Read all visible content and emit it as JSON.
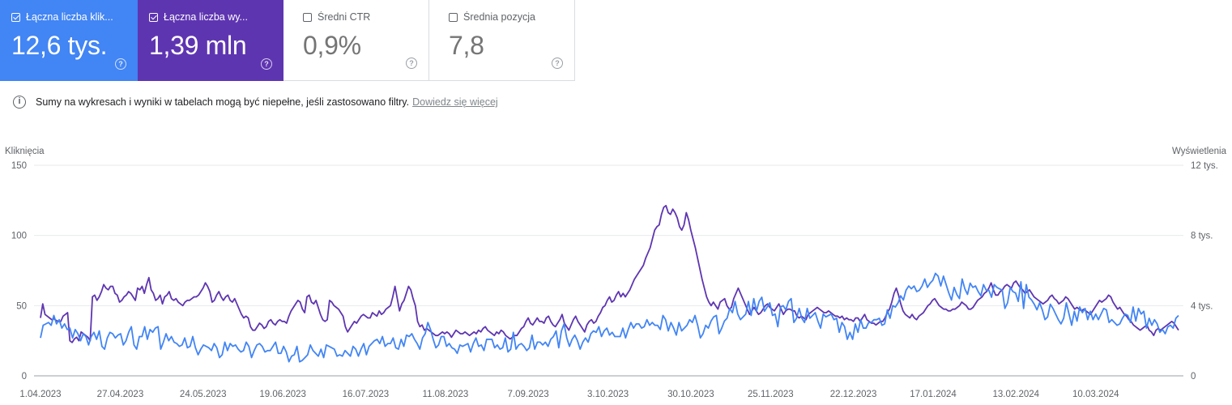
{
  "cards": [
    {
      "label": "Łączna liczba klik...",
      "value": "12,6 tys.",
      "checked": true,
      "color": "#4285f4"
    },
    {
      "label": "Łączna liczba wy...",
      "value": "1,39 mln",
      "checked": true,
      "color": "#5e35b1"
    },
    {
      "label": "Średni CTR",
      "value": "0,9%",
      "checked": false
    },
    {
      "label": "Średnia pozycja",
      "value": "7,8",
      "checked": false
    }
  ],
  "info": {
    "text": "Sumy na wykresach i wyniki w tabelach mogą być niepełne, jeśli zastosowano filtry.",
    "link": "Dowiedz się więcej"
  },
  "chart_data": {
    "type": "line",
    "ylabel_left": "Kliknięcia",
    "ylabel_right": "Wyświetlenia",
    "left_ticks": [
      "0",
      "50",
      "100",
      "150"
    ],
    "right_ticks": [
      "0",
      "4 tys.",
      "8 tys.",
      "12 tys."
    ],
    "ylim_left": [
      0,
      150
    ],
    "ylim_right": [
      0,
      12000
    ],
    "x_ticks": [
      "1.04.2023",
      "27.04.2023",
      "24.05.2023",
      "19.06.2023",
      "16.07.2023",
      "11.08.2023",
      "7.09.2023",
      "3.10.2023",
      "30.10.2023",
      "25.11.2023",
      "22.12.2023",
      "17.01.2024",
      "13.02.2024",
      "10.03.2024"
    ],
    "x_start": "2023-04-01",
    "x_end": "2024-04-06",
    "grid": true,
    "series": [
      {
        "name": "Kliknięcia",
        "axis": "left",
        "color": "#4285f4",
        "values": [
          27,
          36,
          37,
          38,
          36,
          43,
          37,
          40,
          34,
          37,
          33,
          34,
          27,
          33,
          30,
          25,
          30,
          28,
          22,
          28,
          31,
          26,
          32,
          21,
          19,
          27,
          31,
          30,
          27,
          29,
          30,
          22,
          25,
          31,
          35,
          22,
          19,
          28,
          28,
          35,
          26,
          33,
          31,
          34,
          35,
          19,
          24,
          30,
          25,
          28,
          24,
          23,
          21,
          22,
          27,
          20,
          21,
          28,
          20,
          15,
          19,
          22,
          21,
          20,
          18,
          23,
          20,
          13,
          15,
          24,
          18,
          23,
          21,
          22,
          19,
          17,
          18,
          24,
          21,
          13,
          18,
          22,
          23,
          21,
          17,
          18,
          18,
          21,
          24,
          16,
          16,
          21,
          17,
          10,
          14,
          15,
          21,
          10,
          11,
          13,
          15,
          22,
          18,
          16,
          14,
          19,
          13,
          22,
          21,
          20,
          19,
          14,
          15,
          14,
          18,
          16,
          14,
          21,
          19,
          14,
          19,
          23,
          15,
          21,
          23,
          25,
          26,
          23,
          28,
          21,
          23,
          23,
          27,
          20,
          19,
          26,
          21,
          29,
          28,
          30,
          26,
          23,
          19,
          27,
          30,
          38,
          33,
          26,
          20,
          22,
          28,
          28,
          21,
          23,
          20,
          19,
          16,
          22,
          21,
          22,
          23,
          17,
          23,
          27,
          21,
          22,
          18,
          26,
          26,
          26,
          20,
          22,
          19,
          20,
          27,
          17,
          19,
          31,
          19,
          22,
          23,
          21,
          18,
          20,
          29,
          19,
          24,
          24,
          22,
          24,
          21,
          26,
          28,
          32,
          20,
          32,
          37,
          27,
          21,
          26,
          29,
          25,
          19,
          24,
          27,
          24,
          30,
          32,
          31,
          35,
          28,
          32,
          34,
          29,
          31,
          28,
          28,
          28,
          34,
          27,
          33,
          38,
          34,
          37,
          37,
          34,
          35,
          40,
          36,
          38,
          36,
          36,
          33,
          43,
          40,
          32,
          38,
          34,
          29,
          38,
          32,
          34,
          36,
          40,
          38,
          43,
          36,
          27,
          30,
          36,
          34,
          39,
          42,
          43,
          30,
          34,
          39,
          41,
          48,
          45,
          53,
          44,
          40,
          42,
          44,
          53,
          43,
          55,
          46,
          53,
          56,
          46,
          49,
          52,
          43,
          44,
          35,
          49,
          50,
          47,
          53,
          55,
          38,
          41,
          48,
          41,
          38,
          48,
          41,
          43,
          45,
          39,
          34,
          44,
          42,
          43,
          44,
          40,
          41,
          31,
          38,
          35,
          26,
          31,
          26,
          37,
          31,
          40,
          34,
          34,
          38,
          38,
          40,
          40,
          41,
          36,
          37,
          47,
          41,
          50,
          49,
          52,
          57,
          54,
          61,
          64,
          62,
          64,
          60,
          61,
          64,
          69,
          63,
          66,
          68,
          73,
          71,
          64,
          71,
          65,
          59,
          54,
          63,
          58,
          55,
          69,
          62,
          58,
          66,
          63,
          64,
          60,
          57,
          65,
          61,
          61,
          56,
          65,
          63,
          62,
          61,
          48,
          52,
          63,
          60,
          59,
          53,
          67,
          48,
          65,
          56,
          54,
          51,
          47,
          52,
          47,
          40,
          42,
          51,
          48,
          44,
          40,
          37,
          41,
          52,
          44,
          36,
          46,
          39,
          49,
          45,
          48,
          40,
          46,
          40,
          44,
          40,
          44,
          48,
          47,
          38,
          40,
          38,
          36,
          37,
          41,
          44,
          43,
          38,
          49,
          39,
          48,
          44,
          46,
          34,
          41,
          36,
          40,
          37,
          31,
          33,
          30,
          35,
          36,
          34,
          41,
          43
        ]
      },
      {
        "name": "Wyświetlenia",
        "axis": "right",
        "color": "#5e35b1",
        "values": [
          3300,
          4100,
          3500,
          3400,
          3300,
          3200,
          3250,
          3150,
          3100,
          3100,
          3400,
          3500,
          3600,
          2000,
          1900,
          2100,
          2200,
          2000,
          2500,
          2400,
          2300,
          2200,
          2000,
          4500,
          4600,
          4300,
          4500,
          4800,
          5200,
          5000,
          4900,
          5100,
          5100,
          4700,
          4600,
          4200,
          4300,
          4500,
          4600,
          4800,
          4700,
          4500,
          4300,
          5000,
          4900,
          5100,
          4700,
          5200,
          5600,
          4900,
          4700,
          4300,
          4400,
          4600,
          4100,
          4500,
          4600,
          4800,
          4400,
          4300,
          4400,
          4200,
          4100,
          4000,
          4200,
          4300,
          4300,
          4400,
          4500,
          4500,
          4600,
          4800,
          5000,
          5300,
          5100,
          4800,
          4200,
          4300,
          4600,
          4800,
          4500,
          4300,
          4500,
          4600,
          4300,
          4200,
          4400,
          4100,
          3800,
          3500,
          3300,
          3400,
          3300,
          2800,
          2600,
          2600,
          2800,
          3000,
          2900,
          2700,
          2800,
          3100,
          3200,
          3000,
          2900,
          3100,
          3200,
          3100,
          3100,
          3000,
          3400,
          3700,
          3900,
          4100,
          4300,
          4200,
          3800,
          3600,
          4500,
          4600,
          4200,
          4100,
          4300,
          3900,
          3500,
          3200,
          3100,
          3200,
          4300,
          4200,
          4000,
          3900,
          3800,
          3600,
          3400,
          2800,
          2500,
          2700,
          2900,
          3100,
          3000,
          3200,
          3400,
          3500,
          3400,
          3300,
          3300,
          3600,
          3500,
          3400,
          3700,
          3500,
          3600,
          3800,
          3900,
          4000,
          4500,
          5100,
          4400,
          3700,
          4100,
          4300,
          4700,
          5100,
          4900,
          4400,
          4000,
          3100,
          2800,
          2900,
          2600,
          2700,
          2600,
          2500,
          2400,
          2300,
          2300,
          2400,
          2500,
          2400,
          2500,
          2400,
          2200,
          2400,
          2600,
          2500,
          2400,
          2400,
          2500,
          2400,
          2300,
          2400,
          2500,
          2400,
          2600,
          2500,
          2700,
          2800,
          2600,
          2500,
          2400,
          2300,
          2500,
          2400,
          2600,
          2500,
          2300,
          2200,
          2100,
          2200,
          2300,
          2300,
          2500,
          2700,
          2800,
          3100,
          3300,
          3000,
          2900,
          3100,
          3300,
          3100,
          3100,
          3000,
          3300,
          3400,
          3100,
          2900,
          2800,
          3000,
          3200,
          3500,
          3000,
          2800,
          2600,
          2900,
          3200,
          3400,
          3100,
          2900,
          2700,
          2500,
          2900,
          3100,
          3200,
          3000,
          3100,
          3400,
          3600,
          3900,
          4000,
          4300,
          4500,
          4200,
          4300,
          4600,
          4800,
          4500,
          4700,
          4500,
          4700,
          4900,
          5200,
          5500,
          5700,
          5900,
          6100,
          6300,
          6700,
          7000,
          7300,
          7800,
          8300,
          8500,
          8600,
          9200,
          9600,
          9700,
          9300,
          9200,
          9500,
          9300,
          9000,
          8500,
          8300,
          8600,
          9300,
          8900,
          8300,
          7800,
          7300,
          6700,
          6100,
          5500,
          5000,
          4500,
          4200,
          4000,
          4200,
          4000,
          3800,
          4200,
          4300,
          4400,
          4000,
          3800,
          3900,
          4400,
          4700,
          5000,
          4700,
          4400,
          4100,
          3800,
          3500,
          3700,
          3900,
          3700,
          3500,
          3600,
          3800,
          4000,
          4100,
          3900,
          3800,
          3700,
          3900,
          4100,
          3800,
          3500,
          3700,
          3800,
          3800,
          3700,
          3700,
          3400,
          3300,
          3400,
          3300,
          3200,
          3500,
          3600,
          3700,
          3800,
          3900,
          3800,
          3700,
          3600,
          3600,
          3700,
          3600,
          3500,
          3400,
          3400,
          3300,
          3400,
          3200,
          3300,
          3200,
          3200,
          3100,
          3300,
          3300,
          3100,
          3300,
          3500,
          3200,
          3100,
          3000,
          3000,
          2900,
          3000,
          3100,
          3100,
          3300,
          3600,
          3800,
          4200,
          4700,
          5000,
          4600,
          4100,
          3700,
          3500,
          3400,
          3300,
          3500,
          3300,
          3200,
          3400,
          3500,
          3600,
          3800,
          4000,
          4100,
          4300,
          4400,
          4200,
          4000,
          3900,
          3800,
          3800,
          3700,
          3700,
          3800,
          3800,
          3900,
          4000,
          4200,
          4100,
          4000,
          3800,
          3800,
          3900,
          4100,
          4300,
          4400,
          4500,
          4700,
          4800,
          5000,
          5300,
          4900,
          4600,
          4600,
          4800,
          4900,
          5100,
          5200,
          5100,
          5000,
          5300,
          5400,
          5200,
          5000,
          4900,
          4700,
          4800,
          4900,
          4700,
          4500,
          4400,
          4300,
          4200,
          4100,
          4200,
          4300,
          4500,
          4600,
          4400,
          4300,
          4100,
          4200,
          4300,
          4500,
          4400,
          4200,
          4000,
          3800,
          3900,
          3800,
          3700,
          3800,
          3700,
          3600,
          3500,
          3700,
          3900,
          4100,
          4300,
          4200,
          4300,
          4400,
          4600,
          4500,
          4200,
          4000,
          3800,
          3900,
          3700,
          3500,
          3400,
          3200,
          3100,
          2900,
          2800,
          2700,
          2600,
          2700,
          2800,
          2900,
          2600,
          2500,
          2300,
          2600,
          2700,
          2600,
          2700,
          2800,
          2900,
          3000,
          3100,
          3000,
          2800,
          2600
        ]
      }
    ]
  }
}
